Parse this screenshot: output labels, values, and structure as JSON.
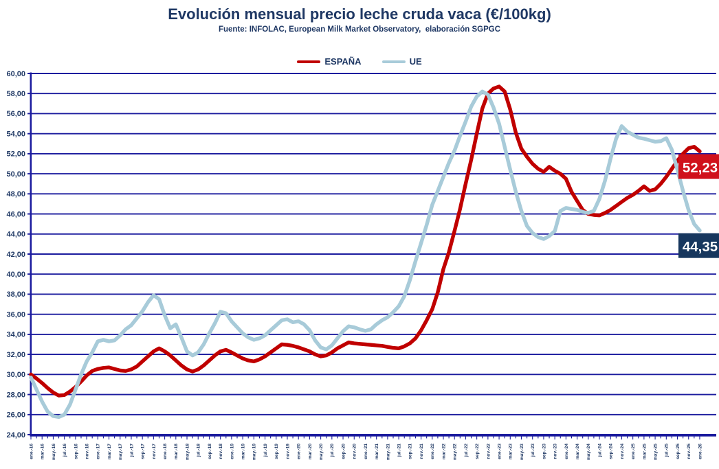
{
  "header": {
    "title": "Evolución mensual precio leche cruda vaca (€/100kg)",
    "subtitle": "Fuente: INFOLAC, European Milk Market Observatory,  elaboración SGPGC"
  },
  "legend": {
    "items": [
      {
        "label": "ESPAÑA",
        "color": "#C00000"
      },
      {
        "label": "UE",
        "color": "#A8CBD9"
      }
    ]
  },
  "chart_data": {
    "type": "line",
    "title": "Evolución mensual precio leche cruda vaca (€/100kg)",
    "source_note": "Fuente: INFOLAC, European Milk Market Observatory,  elaboración SGPGC",
    "ylabel": "",
    "xlabel": "",
    "ylim": [
      24,
      60
    ],
    "ytick_step": 2,
    "grid": true,
    "legend_position": "top-center",
    "y_tick_labels": [
      "60,00",
      "58,00",
      "56,00",
      "54,00",
      "52,00",
      "50,00",
      "48,00",
      "46,00",
      "44,00",
      "42,00",
      "40,00",
      "38,00",
      "36,00",
      "34,00",
      "32,00",
      "30,00",
      "28,00",
      "26,00",
      "24,00"
    ],
    "points_per_tick": 2,
    "x_tick_labels": [
      "ene.-16",
      "mar.-16",
      "may.-16",
      "jul.-16",
      "sep.-16",
      "nov.-16",
      "ene.-17",
      "mar.-17",
      "may.-17",
      "jul.-17",
      "sep.-17",
      "nov.-17",
      "ene.-18",
      "mar.-18",
      "may.-18",
      "jul.-18",
      "sep.-18",
      "nov.-18",
      "ene.-19",
      "mar.-19",
      "may.-19",
      "jul.-19",
      "sep.-19",
      "nov.-19",
      "ene.-20",
      "mar.-20",
      "may.-20",
      "jul.-20",
      "sep.-20",
      "nov.-20",
      "ene.-21",
      "mar.-21",
      "may.-21",
      "jul.-21",
      "sep.-21",
      "nov.-21",
      "ene.-22",
      "mar.-22",
      "may.-22",
      "jul.-22",
      "sep.-22",
      "nov.-22",
      "ene.-23",
      "mar.-23",
      "may.-23",
      "jul.-23",
      "sep.-23",
      "nov.-23",
      "ene.-24",
      "mar.-24",
      "may.-24",
      "jul.-24",
      "sep.-24",
      "nov.-24",
      "ene.-25",
      "mar.-25",
      "may.-25",
      "jul.-25",
      "sep.-25",
      "nov.-25",
      "ene.-26"
    ],
    "series": [
      {
        "name": "ESPAÑA",
        "color": "#C00000",
        "end_label": {
          "text": "52,23",
          "bg": "#D0111B",
          "text_color": "#FFFFFF"
        },
        "values": [
          30.0,
          29.6,
          29.15,
          28.65,
          28.2,
          27.9,
          27.95,
          28.3,
          28.75,
          29.3,
          29.9,
          30.35,
          30.55,
          30.65,
          30.7,
          30.55,
          30.4,
          30.35,
          30.5,
          30.8,
          31.3,
          31.8,
          32.3,
          32.6,
          32.3,
          31.9,
          31.4,
          30.9,
          30.5,
          30.3,
          30.5,
          30.9,
          31.4,
          31.9,
          32.3,
          32.45,
          32.2,
          31.9,
          31.6,
          31.4,
          31.3,
          31.5,
          31.8,
          32.2,
          32.6,
          33.0,
          32.95,
          32.85,
          32.7,
          32.5,
          32.3,
          32.0,
          31.8,
          31.9,
          32.2,
          32.6,
          32.9,
          33.2,
          33.1,
          33.05,
          33.0,
          32.95,
          32.9,
          32.85,
          32.75,
          32.65,
          32.6,
          32.8,
          33.1,
          33.6,
          34.4,
          35.4,
          36.5,
          38.2,
          40.5,
          42.2,
          44.3,
          46.5,
          49.0,
          51.4,
          54.0,
          56.5,
          58.0,
          58.5,
          58.7,
          58.2,
          56.4,
          54.1,
          52.5,
          51.7,
          51.0,
          50.5,
          50.2,
          50.7,
          50.3,
          50.0,
          49.5,
          48.2,
          47.3,
          46.4,
          46.0,
          45.9,
          45.85,
          46.1,
          46.4,
          46.8,
          47.2,
          47.6,
          47.9,
          48.3,
          48.75,
          48.3,
          48.45,
          49.0,
          49.7,
          50.5,
          51.3,
          52.0,
          52.55,
          52.7,
          52.23
        ]
      },
      {
        "name": "UE",
        "color": "#A8CBD9",
        "end_label": {
          "text": "44,35",
          "bg": "#17375E",
          "text_color": "#FFFFFF"
        },
        "values": [
          29.7,
          28.5,
          27.3,
          26.3,
          25.85,
          25.75,
          26.0,
          27.0,
          28.5,
          30.0,
          31.3,
          32.2,
          33.3,
          33.45,
          33.3,
          33.4,
          33.9,
          34.5,
          34.9,
          35.6,
          36.3,
          37.2,
          37.9,
          37.5,
          35.9,
          34.6,
          35.0,
          33.7,
          32.3,
          31.9,
          32.2,
          33.0,
          34.1,
          35.1,
          36.25,
          36.1,
          35.3,
          34.7,
          34.1,
          33.7,
          33.45,
          33.6,
          33.9,
          34.4,
          34.9,
          35.4,
          35.5,
          35.2,
          35.3,
          35.0,
          34.4,
          33.4,
          32.7,
          32.5,
          32.9,
          33.6,
          34.3,
          34.8,
          34.7,
          34.5,
          34.35,
          34.5,
          35.0,
          35.4,
          35.7,
          36.2,
          36.8,
          37.8,
          39.4,
          41.3,
          43.1,
          44.9,
          46.9,
          48.3,
          49.7,
          51.1,
          52.3,
          53.8,
          55.2,
          56.7,
          57.7,
          58.2,
          57.9,
          56.6,
          55.0,
          52.7,
          50.4,
          48.2,
          46.3,
          44.8,
          44.1,
          43.7,
          43.5,
          43.8,
          44.3,
          46.3,
          46.6,
          46.5,
          46.4,
          46.2,
          46.1,
          46.3,
          47.5,
          49.3,
          51.5,
          53.5,
          54.75,
          54.2,
          53.9,
          53.6,
          53.5,
          53.35,
          53.2,
          53.25,
          53.55,
          52.4,
          50.4,
          48.3,
          46.4,
          45.0,
          44.35
        ]
      }
    ],
    "colors": {
      "grid": "#1B1B9E",
      "axis": "#1B1B9E",
      "tick_text": "#1F3864"
    }
  }
}
